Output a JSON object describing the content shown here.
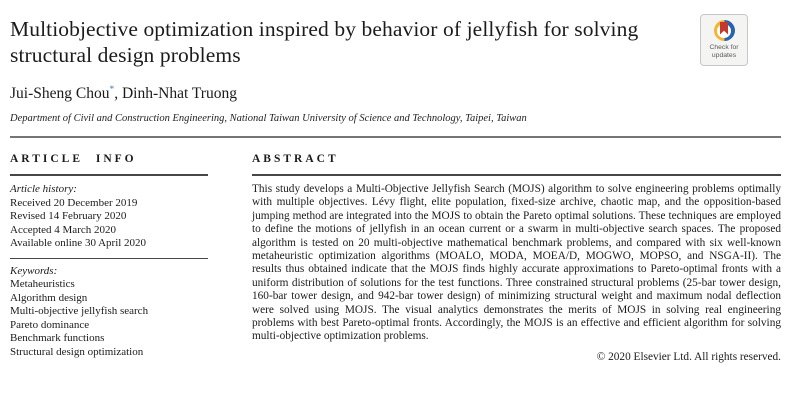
{
  "header": {
    "title": "Multiobjective optimization inspired by behavior of jellyfish for solving structural design problems",
    "authors": {
      "first": "Jui-Sheng Chou",
      "marker": "*",
      "rest": ", Dinh-Nhat Truong"
    },
    "affiliation": "Department of Civil and Construction Engineering, National Taiwan University of Science and Technology, Taipei, Taiwan",
    "badge": {
      "line1": "Check for",
      "line2": "updates",
      "icon": "crossmark-icon"
    }
  },
  "article_info": {
    "heading": "ARTICLE INFO",
    "history_label": "Article history:",
    "history": [
      "Received 20 December 2019",
      "Revised 14 February 2020",
      "Accepted 4 March 2020",
      "Available online 30 April 2020"
    ],
    "keywords_label": "Keywords:",
    "keywords": [
      "Metaheuristics",
      "Algorithm design",
      "Multi-objective jellyfish search",
      "Pareto dominance",
      "Benchmark functions",
      "Structural design optimization"
    ]
  },
  "abstract": {
    "heading": "ABSTRACT",
    "text": "This study develops a Multi-Objective Jellyfish Search (MOJS) algorithm to solve engineering problems optimally with multiple objectives. Lévy flight, elite population, fixed-size archive, chaotic map, and the opposition-based jumping method are integrated into the MOJS to obtain the Pareto optimal solutions. These techniques are employed to define the motions of jellyfish in an ocean current or a swarm in multi-objective search spaces. The proposed algorithm is tested on 20 multi-objective mathematical benchmark problems, and compared with six well-known metaheuristic optimization algorithms (MOALO, MODA, MOEA/D, MOGWO, MOPSO, and NSGA-II). The results thus obtained indicate that the MOJS finds highly accurate approximations to Pareto-optimal fronts with a uniform distribution of solutions for the test functions. Three constrained structural problems (25-bar tower design, 160-bar tower design, and 942-bar tower design) of minimizing structural weight and maximum nodal deflection were solved using MOJS. The visual analytics demonstrates the merits of MOJS in solving real engineering problems with best Pareto-optimal fronts. Accordingly, the MOJS is an effective and efficient algorithm for solving multi-objective optimization problems.",
    "copyright": "© 2020 Elsevier Ltd. All rights reserved."
  },
  "colors": {
    "author_marker_blue": "#3e7cb8",
    "crossmark_blue": "#2a63ad",
    "crossmark_yellow": "#f2b632",
    "crossmark_red": "#c4392e"
  }
}
